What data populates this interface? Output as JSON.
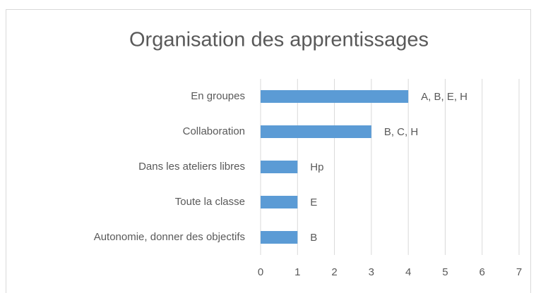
{
  "chart_data": {
    "type": "bar",
    "orientation": "horizontal",
    "title": "Organisation des apprentissages",
    "categories": [
      "En groupes",
      "Collaboration",
      "Dans les ateliers libres",
      "Toute la classe",
      "Autonomie, donner des objectifs"
    ],
    "values": [
      4,
      3,
      1,
      1,
      1
    ],
    "value_labels": [
      "A, B, E, H",
      "B, C, H",
      "Hp",
      "E",
      "B"
    ],
    "color": "#5b9bd5",
    "xlim": [
      0,
      7
    ],
    "xticks": [
      0,
      1,
      2,
      3,
      4,
      5,
      6,
      7
    ],
    "grid": true
  }
}
